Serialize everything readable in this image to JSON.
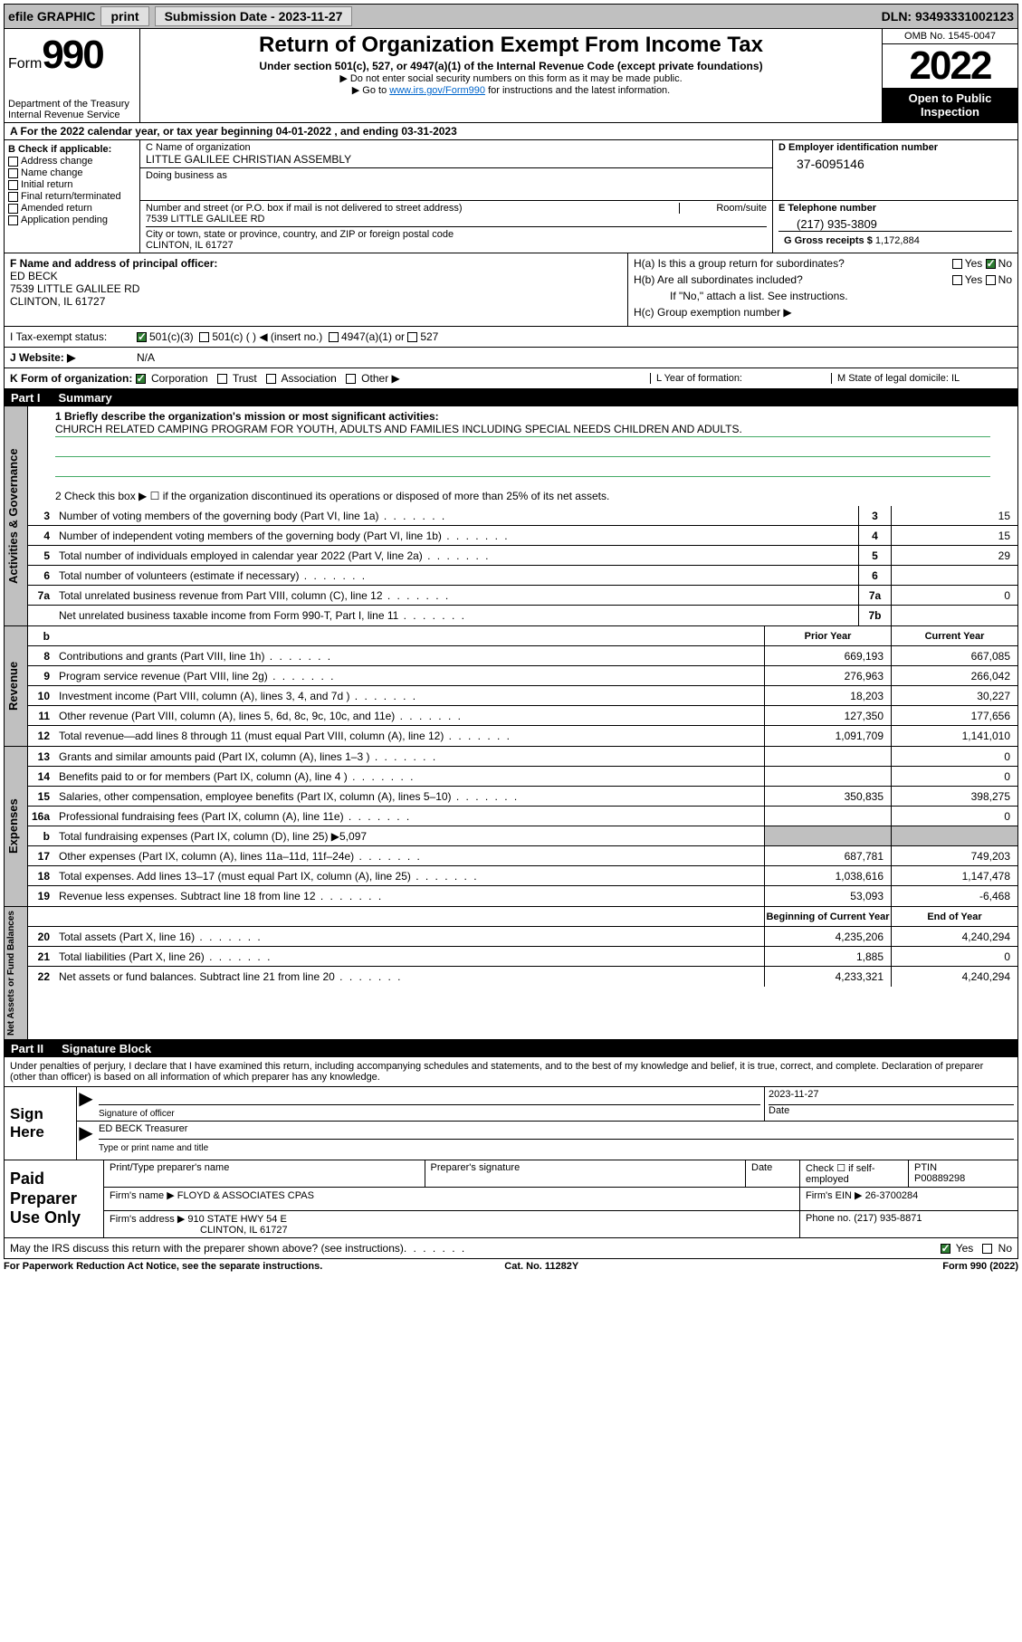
{
  "top": {
    "efile": "efile GRAPHIC",
    "print": "print",
    "subdate_label": "Submission Date - 2023-11-27",
    "dln": "DLN: 93493331002123"
  },
  "header": {
    "form_label": "Form",
    "form_num": "990",
    "dept": "Department of the Treasury\nInternal Revenue Service",
    "title": "Return of Organization Exempt From Income Tax",
    "sub1": "Under section 501(c), 527, or 4947(a)(1) of the Internal Revenue Code (except private foundations)",
    "sub2": "▶ Do not enter social security numbers on this form as it may be made public.",
    "sub3_pre": "▶ Go to ",
    "sub3_link": "www.irs.gov/Form990",
    "sub3_post": " for instructions and the latest information.",
    "omb": "OMB No. 1545-0047",
    "year": "2022",
    "open": "Open to Public Inspection"
  },
  "a": {
    "text": "A For the 2022 calendar year, or tax year beginning 04-01-2022   , and ending 03-31-2023"
  },
  "b": {
    "label": "B Check if applicable:",
    "items": [
      "Address change",
      "Name change",
      "Initial return",
      "Final return/terminated",
      "Amended return",
      "Application pending"
    ]
  },
  "c": {
    "name_label": "C Name of organization",
    "name": "LITTLE GALILEE CHRISTIAN ASSEMBLY",
    "dba_label": "Doing business as",
    "addr_label1": "Number and street (or P.O. box if mail is not delivered to street address)",
    "room_label": "Room/suite",
    "addr1": "7539 LITTLE GALILEE RD",
    "addr_label2": "City or town, state or province, country, and ZIP or foreign postal code",
    "addr2": "CLINTON, IL  61727"
  },
  "d": {
    "label": "D Employer identification number",
    "ein": "37-6095146"
  },
  "e": {
    "label": "E Telephone number",
    "tel": "(217) 935-3809"
  },
  "g": {
    "label": "G Gross receipts $",
    "val": "1,172,884"
  },
  "f": {
    "label": "F Name and address of principal officer:",
    "name": "ED BECK",
    "addr1": "7539 LITTLE GALILEE RD",
    "addr2": "CLINTON, IL  61727"
  },
  "h": {
    "a_label": "H(a)  Is this a group return for subordinates?",
    "b_label": "H(b)  Are all subordinates included?",
    "b_note": "If \"No,\" attach a list. See instructions.",
    "c_label": "H(c)  Group exemption number ▶"
  },
  "i": {
    "label": "I   Tax-exempt status:",
    "opts": [
      "501(c)(3)",
      "501(c) (  ) ◀ (insert no.)",
      "4947(a)(1) or",
      "527"
    ]
  },
  "j": {
    "label": "J   Website: ▶",
    "val": "N/A"
  },
  "k": {
    "label": "K Form of organization:",
    "opts": [
      "Corporation",
      "Trust",
      "Association",
      "Other ▶"
    ],
    "l_label": "L Year of formation:",
    "m_label": "M State of legal domicile: IL"
  },
  "part1": {
    "title_pt": "Part I",
    "title": "Summary",
    "line1_label": "1  Briefly describe the organization's mission or most significant activities:",
    "line1_val": "CHURCH RELATED CAMPING PROGRAM FOR YOUTH, ADULTS AND FAMILIES INCLUDING SPECIAL NEEDS CHILDREN AND ADULTS.",
    "line2": "2   Check this box ▶ ☐  if the organization discontinued its operations or disposed of more than 25% of its net assets.",
    "governance": [
      {
        "n": "3",
        "d": "Number of voting members of the governing body (Part VI, line 1a)",
        "k": "3",
        "v": "15"
      },
      {
        "n": "4",
        "d": "Number of independent voting members of the governing body (Part VI, line 1b)",
        "k": "4",
        "v": "15"
      },
      {
        "n": "5",
        "d": "Total number of individuals employed in calendar year 2022 (Part V, line 2a)",
        "k": "5",
        "v": "29"
      },
      {
        "n": "6",
        "d": "Total number of volunteers (estimate if necessary)",
        "k": "6",
        "v": ""
      },
      {
        "n": "7a",
        "d": "Total unrelated business revenue from Part VIII, column (C), line 12",
        "k": "7a",
        "v": "0"
      },
      {
        "n": "",
        "d": "Net unrelated business taxable income from Form 990-T, Part I, line 11",
        "k": "7b",
        "v": ""
      }
    ],
    "col_prior": "Prior Year",
    "col_current": "Current Year",
    "revenue": [
      {
        "n": "8",
        "d": "Contributions and grants (Part VIII, line 1h)",
        "p": "669,193",
        "c": "667,085"
      },
      {
        "n": "9",
        "d": "Program service revenue (Part VIII, line 2g)",
        "p": "276,963",
        "c": "266,042"
      },
      {
        "n": "10",
        "d": "Investment income (Part VIII, column (A), lines 3, 4, and 7d )",
        "p": "18,203",
        "c": "30,227"
      },
      {
        "n": "11",
        "d": "Other revenue (Part VIII, column (A), lines 5, 6d, 8c, 9c, 10c, and 11e)",
        "p": "127,350",
        "c": "177,656"
      },
      {
        "n": "12",
        "d": "Total revenue—add lines 8 through 11 (must equal Part VIII, column (A), line 12)",
        "p": "1,091,709",
        "c": "1,141,010"
      }
    ],
    "expenses": [
      {
        "n": "13",
        "d": "Grants and similar amounts paid (Part IX, column (A), lines 1–3 )",
        "p": "",
        "c": "0"
      },
      {
        "n": "14",
        "d": "Benefits paid to or for members (Part IX, column (A), line 4 )",
        "p": "",
        "c": "0"
      },
      {
        "n": "15",
        "d": "Salaries, other compensation, employee benefits (Part IX, column (A), lines 5–10)",
        "p": "350,835",
        "c": "398,275"
      },
      {
        "n": "16a",
        "d": "Professional fundraising fees (Part IX, column (A), line 11e)",
        "p": "",
        "c": "0"
      },
      {
        "n": "b",
        "d": "Total fundraising expenses (Part IX, column (D), line 25) ▶5,097",
        "p": "__grey__",
        "c": "__grey__"
      },
      {
        "n": "17",
        "d": "Other expenses (Part IX, column (A), lines 11a–11d, 11f–24e)",
        "p": "687,781",
        "c": "749,203"
      },
      {
        "n": "18",
        "d": "Total expenses. Add lines 13–17 (must equal Part IX, column (A), line 25)",
        "p": "1,038,616",
        "c": "1,147,478"
      },
      {
        "n": "19",
        "d": "Revenue less expenses. Subtract line 18 from line 12",
        "p": "53,093",
        "c": "-6,468"
      }
    ],
    "col_begin": "Beginning of Current Year",
    "col_end": "End of Year",
    "netassets": [
      {
        "n": "20",
        "d": "Total assets (Part X, line 16)",
        "p": "4,235,206",
        "c": "4,240,294"
      },
      {
        "n": "21",
        "d": "Total liabilities (Part X, line 26)",
        "p": "1,885",
        "c": "0"
      },
      {
        "n": "22",
        "d": "Net assets or fund balances. Subtract line 21 from line 20",
        "p": "4,233,321",
        "c": "4,240,294"
      }
    ]
  },
  "part2": {
    "title_pt": "Part II",
    "title": "Signature Block",
    "decl": "Under penalties of perjury, I declare that I have examined this return, including accompanying schedules and statements, and to the best of my knowledge and belief, it is true, correct, and complete. Declaration of preparer (other than officer) is based on all information of which preparer has any knowledge.",
    "sign_here": "Sign Here",
    "sig_officer": "Signature of officer",
    "sig_date": "2023-11-27",
    "date_label": "Date",
    "officer_name": "ED BECK Treasurer",
    "officer_label": "Type or print name and title",
    "paid": "Paid Preparer Use Only",
    "prep_name_label": "Print/Type preparer's name",
    "prep_sig_label": "Preparer's signature",
    "prep_date_label": "Date",
    "check_label": "Check ☐ if self-employed",
    "ptin_label": "PTIN",
    "ptin": "P00889298",
    "firm_name_label": "Firm's name   ▶",
    "firm_name": "FLOYD & ASSOCIATES CPAS",
    "firm_ein_label": "Firm's EIN ▶",
    "firm_ein": "26-3700284",
    "firm_addr_label": "Firm's address ▶",
    "firm_addr1": "910 STATE HWY 54 E",
    "firm_addr2": "CLINTON, IL  61727",
    "phone_label": "Phone no.",
    "phone": "(217) 935-8871",
    "may_irs": "May the IRS discuss this return with the preparer shown above? (see instructions)",
    "yes": "Yes",
    "no": "No"
  },
  "footer": {
    "pra": "For Paperwork Reduction Act Notice, see the separate instructions.",
    "cat": "Cat. No. 11282Y",
    "form": "Form 990 (2022)"
  },
  "labels": {
    "vert_gov": "Activities & Governance",
    "vert_rev": "Revenue",
    "vert_exp": "Expenses",
    "vert_net": "Net Assets or Fund Balances"
  }
}
